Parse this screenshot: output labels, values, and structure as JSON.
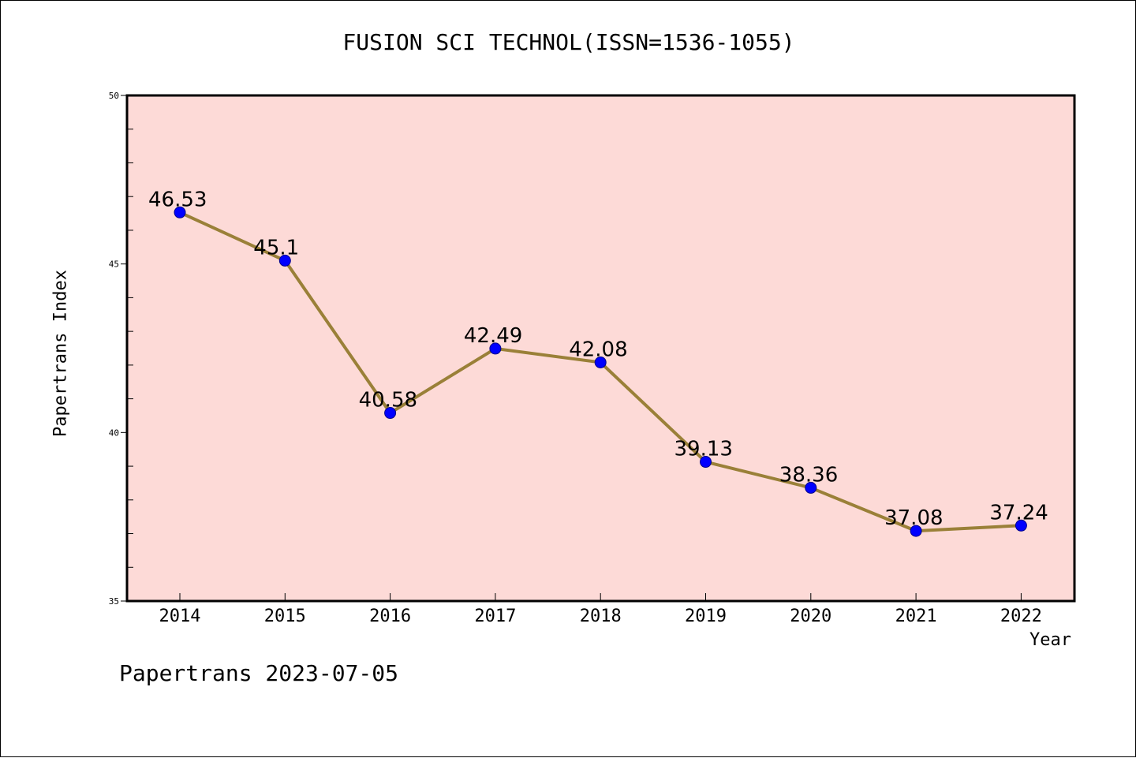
{
  "chart_data": {
    "type": "line",
    "title": "FUSION SCI TECHNOL(ISSN=1536-1055)",
    "xlabel": "Year",
    "ylabel": "Papertrans Index",
    "categories": [
      "2014",
      "2015",
      "2016",
      "2017",
      "2018",
      "2019",
      "2020",
      "2021",
      "2022"
    ],
    "values": [
      46.53,
      45.1,
      40.58,
      42.49,
      42.08,
      39.13,
      38.36,
      37.08,
      37.24
    ],
    "data_labels": [
      "46.53",
      "45.1",
      "40.58",
      "42.49",
      "42.08",
      "39.13",
      "38.36",
      "37.08",
      "37.24"
    ],
    "ylim": [
      35,
      50
    ],
    "y_ticks": [
      "35",
      "40",
      "45",
      "50"
    ],
    "grid": false,
    "colors": {
      "plot_background": "#fddad7",
      "line": "#9a8038",
      "marker": "#0000ff"
    }
  },
  "footer": "Papertrans 2023-07-05"
}
